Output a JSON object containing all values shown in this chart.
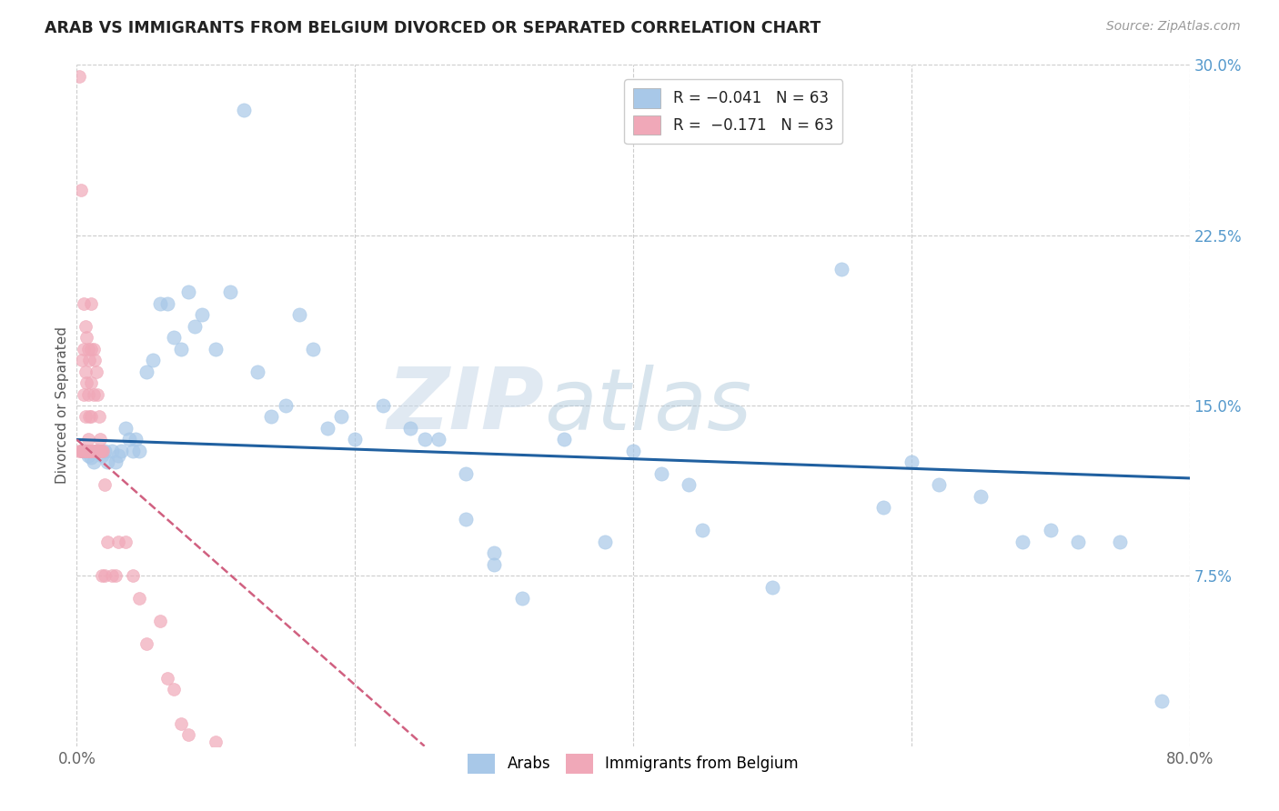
{
  "title": "ARAB VS IMMIGRANTS FROM BELGIUM DIVORCED OR SEPARATED CORRELATION CHART",
  "source": "Source: ZipAtlas.com",
  "ylabel": "Divorced or Separated",
  "xlim": [
    0.0,
    0.8
  ],
  "ylim": [
    0.0,
    0.3
  ],
  "ytick_positions": [
    0.075,
    0.15,
    0.225,
    0.3
  ],
  "ytick_labels": [
    "7.5%",
    "15.0%",
    "22.5%",
    "30.0%"
  ],
  "blue_color": "#a8c8e8",
  "blue_line_color": "#2060a0",
  "pink_color": "#f0a8b8",
  "pink_line_color": "#d06080",
  "watermark_zip": "ZIP",
  "watermark_atlas": "atlas",
  "blue_scatter_x": [
    0.005,
    0.008,
    0.01,
    0.012,
    0.015,
    0.018,
    0.02,
    0.022,
    0.025,
    0.028,
    0.03,
    0.032,
    0.035,
    0.038,
    0.04,
    0.042,
    0.045,
    0.05,
    0.055,
    0.06,
    0.065,
    0.07,
    0.075,
    0.08,
    0.085,
    0.09,
    0.1,
    0.11,
    0.12,
    0.13,
    0.14,
    0.15,
    0.16,
    0.17,
    0.18,
    0.19,
    0.2,
    0.22,
    0.24,
    0.26,
    0.28,
    0.3,
    0.35,
    0.4,
    0.42,
    0.44,
    0.55,
    0.58,
    0.62,
    0.65,
    0.7,
    0.72,
    0.75,
    0.3,
    0.32,
    0.25,
    0.28,
    0.38,
    0.45,
    0.5,
    0.6,
    0.68,
    0.78
  ],
  "blue_scatter_y": [
    0.13,
    0.128,
    0.127,
    0.125,
    0.13,
    0.128,
    0.13,
    0.125,
    0.13,
    0.125,
    0.128,
    0.13,
    0.14,
    0.135,
    0.13,
    0.135,
    0.13,
    0.165,
    0.17,
    0.195,
    0.195,
    0.18,
    0.175,
    0.2,
    0.185,
    0.19,
    0.175,
    0.2,
    0.28,
    0.165,
    0.145,
    0.15,
    0.19,
    0.175,
    0.14,
    0.145,
    0.135,
    0.15,
    0.14,
    0.135,
    0.1,
    0.085,
    0.135,
    0.13,
    0.12,
    0.115,
    0.21,
    0.105,
    0.115,
    0.11,
    0.095,
    0.09,
    0.09,
    0.08,
    0.065,
    0.135,
    0.12,
    0.09,
    0.095,
    0.07,
    0.125,
    0.09,
    0.02
  ],
  "pink_scatter_x": [
    0.002,
    0.002,
    0.003,
    0.003,
    0.004,
    0.004,
    0.005,
    0.005,
    0.005,
    0.005,
    0.006,
    0.006,
    0.006,
    0.006,
    0.007,
    0.007,
    0.007,
    0.008,
    0.008,
    0.008,
    0.008,
    0.009,
    0.009,
    0.009,
    0.01,
    0.01,
    0.01,
    0.01,
    0.01,
    0.01,
    0.012,
    0.012,
    0.012,
    0.013,
    0.013,
    0.014,
    0.014,
    0.015,
    0.015,
    0.015,
    0.016,
    0.016,
    0.017,
    0.017,
    0.018,
    0.018,
    0.019,
    0.02,
    0.02,
    0.022,
    0.025,
    0.028,
    0.03,
    0.035,
    0.04,
    0.045,
    0.05,
    0.06,
    0.065,
    0.07,
    0.075,
    0.08,
    0.1
  ],
  "pink_scatter_y": [
    0.295,
    0.13,
    0.245,
    0.13,
    0.17,
    0.13,
    0.195,
    0.175,
    0.155,
    0.13,
    0.185,
    0.165,
    0.145,
    0.13,
    0.18,
    0.16,
    0.13,
    0.175,
    0.155,
    0.135,
    0.13,
    0.17,
    0.145,
    0.13,
    0.195,
    0.175,
    0.16,
    0.145,
    0.13,
    0.13,
    0.175,
    0.155,
    0.13,
    0.17,
    0.13,
    0.165,
    0.13,
    0.155,
    0.13,
    0.13,
    0.145,
    0.13,
    0.135,
    0.13,
    0.13,
    0.075,
    0.13,
    0.115,
    0.075,
    0.09,
    0.075,
    0.075,
    0.09,
    0.09,
    0.075,
    0.065,
    0.045,
    0.055,
    0.03,
    0.025,
    0.01,
    0.005,
    0.002
  ],
  "blue_trend_x": [
    0.0,
    0.8
  ],
  "blue_trend_y": [
    0.135,
    0.118
  ],
  "pink_trend_x": [
    0.0,
    0.25
  ],
  "pink_trend_y": [
    0.135,
    0.0
  ]
}
